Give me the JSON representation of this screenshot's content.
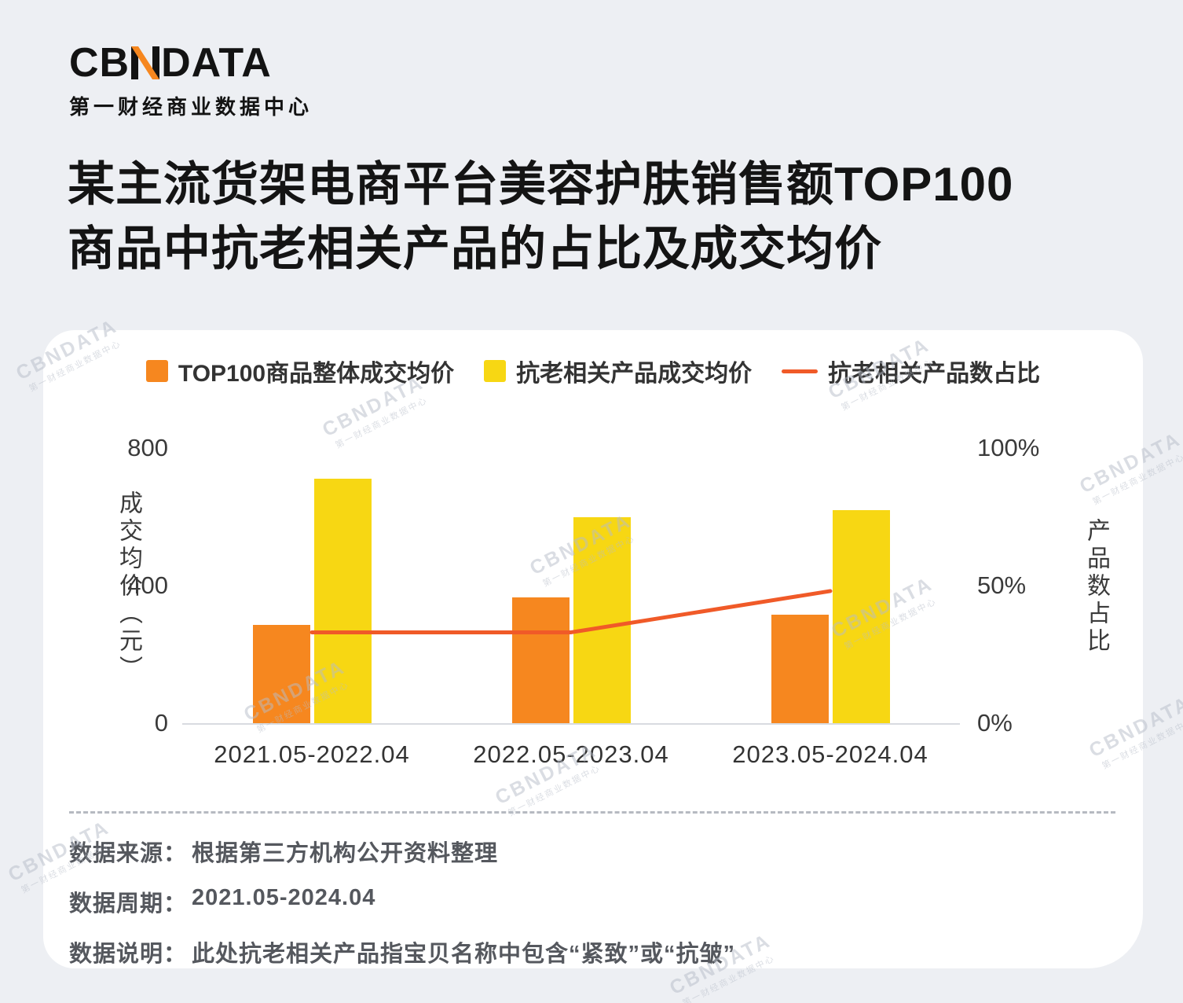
{
  "logo": {
    "brand_prefix": "CB",
    "brand_suffix": "DATA",
    "subtitle": "第一财经商业数据中心",
    "accent_color": "#F6871F"
  },
  "title": {
    "line1": "某主流货架电商平台美容护肤销售额TOP100",
    "line2": "商品中抗老相关产品的占比及成交均价"
  },
  "chart_data": {
    "type": "bar",
    "categories": [
      "2021.05-2022.04",
      "2022.05-2023.04",
      "2023.05-2024.04"
    ],
    "series": [
      {
        "name": "TOP100商品整体成交均价",
        "type": "bar",
        "axis": "left",
        "color": "#F6871F",
        "values": [
          285,
          365,
          315
        ]
      },
      {
        "name": "抗老相关产品成交均价",
        "type": "bar",
        "axis": "left",
        "color": "#F7D713",
        "values": [
          710,
          600,
          620
        ]
      },
      {
        "name": "抗老相关产品数占比",
        "type": "line",
        "axis": "right",
        "color": "#F05A28",
        "values": [
          33,
          33,
          48
        ]
      }
    ],
    "left_axis": {
      "title": "成交均价（元）",
      "ticks": [
        "0",
        "400",
        "800"
      ],
      "min": 0,
      "max": 800
    },
    "right_axis": {
      "title": "产品数占比",
      "ticks": [
        "0%",
        "50%",
        "100%"
      ],
      "min": 0,
      "max": 100
    },
    "legend_position": "top",
    "grid": "off"
  },
  "footer": {
    "rows": [
      {
        "label": "数据来源：",
        "value": "根据第三方机构公开资料整理"
      },
      {
        "label": "数据周期：",
        "value": "2021.05-2024.04"
      },
      {
        "label": "数据说明：",
        "value": "此处抗老相关产品指宝贝名称中包含“紧致”或“抗皱”"
      }
    ]
  },
  "watermark": {
    "brand": "CBNDATA",
    "subtitle": "第一财经商业数据中心"
  }
}
